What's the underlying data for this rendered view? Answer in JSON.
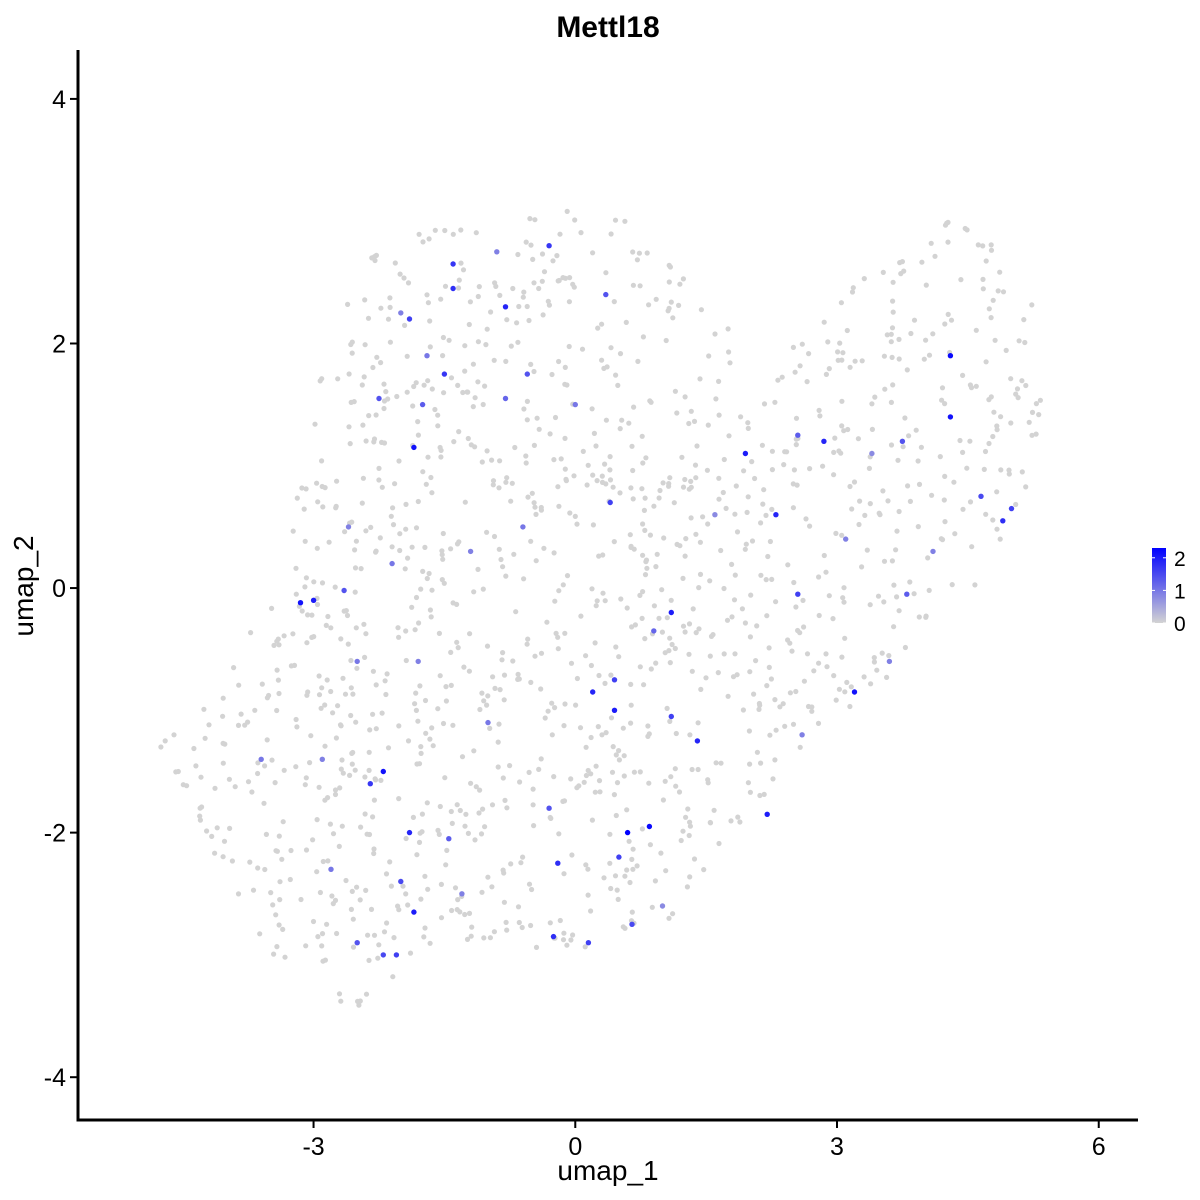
{
  "chart_data": {
    "type": "scatter",
    "title": "Mettl18",
    "xlabel": "umap_1",
    "ylabel": "umap_2",
    "xlim": [
      -5.7,
      6.45
    ],
    "ylim": [
      -4.35,
      4.4
    ],
    "x_ticks": [
      {
        "value": -3,
        "label": "-3"
      },
      {
        "value": 0,
        "label": "0"
      },
      {
        "value": 3,
        "label": "3"
      },
      {
        "value": 6,
        "label": "6"
      }
    ],
    "y_ticks": [
      {
        "value": -4,
        "label": "-4"
      },
      {
        "value": -2,
        "label": "-2"
      },
      {
        "value": 0,
        "label": "0"
      },
      {
        "value": 2,
        "label": "2"
      },
      {
        "value": 4,
        "label": "4"
      }
    ],
    "grid": false,
    "legend": {
      "placement": "right",
      "type": "colorbar",
      "range": [
        0,
        2.3
      ],
      "ticks": [
        {
          "value": 0,
          "label": "0"
        },
        {
          "value": 1,
          "label": "1"
        },
        {
          "value": 2,
          "label": "2"
        }
      ]
    },
    "colors": {
      "low": "#d3d3d3",
      "high": "#0000ff"
    },
    "point_color_variable": "expression",
    "points": [
      {
        "x": -3.0,
        "y": -0.1,
        "v": 2.0
      },
      {
        "x": -3.15,
        "y": -0.12,
        "v": 2.1
      },
      {
        "x": -2.65,
        "y": -0.02,
        "v": 1.4
      },
      {
        "x": -1.85,
        "y": 1.15,
        "v": 2.1
      },
      {
        "x": -1.75,
        "y": 1.5,
        "v": 1.3
      },
      {
        "x": -1.9,
        "y": 2.2,
        "v": 1.6
      },
      {
        "x": -1.4,
        "y": 2.45,
        "v": 1.8
      },
      {
        "x": -1.4,
        "y": 2.65,
        "v": 1.7
      },
      {
        "x": -0.8,
        "y": 2.3,
        "v": 1.9
      },
      {
        "x": -1.5,
        "y": 1.75,
        "v": 1.7
      },
      {
        "x": -0.55,
        "y": 1.75,
        "v": 1.4
      },
      {
        "x": -0.8,
        "y": 1.55,
        "v": 1.2
      },
      {
        "x": -0.3,
        "y": 2.8,
        "v": 1.7
      },
      {
        "x": 0.35,
        "y": 2.4,
        "v": 1.4
      },
      {
        "x": -2.25,
        "y": 1.55,
        "v": 1.4
      },
      {
        "x": -2.2,
        "y": -1.5,
        "v": 2.1
      },
      {
        "x": -2.35,
        "y": -1.6,
        "v": 1.7
      },
      {
        "x": -1.9,
        "y": -2.0,
        "v": 1.9
      },
      {
        "x": -1.85,
        "y": -2.65,
        "v": 2.0
      },
      {
        "x": -2.0,
        "y": -2.4,
        "v": 1.5
      },
      {
        "x": -2.5,
        "y": -2.9,
        "v": 1.4
      },
      {
        "x": -2.2,
        "y": -3.0,
        "v": 1.5
      },
      {
        "x": -2.05,
        "y": -3.0,
        "v": 1.6
      },
      {
        "x": -1.45,
        "y": -2.05,
        "v": 1.3
      },
      {
        "x": -0.3,
        "y": -1.8,
        "v": 1.4
      },
      {
        "x": -0.2,
        "y": -2.25,
        "v": 1.8
      },
      {
        "x": -0.25,
        "y": -2.85,
        "v": 1.8
      },
      {
        "x": 0.15,
        "y": -2.9,
        "v": 1.6
      },
      {
        "x": 0.6,
        "y": -2.0,
        "v": 2.3
      },
      {
        "x": 0.85,
        "y": -1.95,
        "v": 2.2
      },
      {
        "x": 0.5,
        "y": -2.2,
        "v": 1.6
      },
      {
        "x": 0.45,
        "y": -1.0,
        "v": 2.0
      },
      {
        "x": 0.2,
        "y": -0.85,
        "v": 1.9
      },
      {
        "x": 0.45,
        "y": -0.75,
        "v": 1.6
      },
      {
        "x": 1.1,
        "y": -0.2,
        "v": 2.0
      },
      {
        "x": 1.1,
        "y": -1.05,
        "v": 1.6
      },
      {
        "x": 1.4,
        "y": -1.25,
        "v": 1.9
      },
      {
        "x": 0.65,
        "y": -2.75,
        "v": 1.5
      },
      {
        "x": 0.9,
        "y": -0.35,
        "v": 1.2
      },
      {
        "x": 0.4,
        "y": 0.7,
        "v": 1.6
      },
      {
        "x": 1.95,
        "y": 1.1,
        "v": 2.0
      },
      {
        "x": 2.3,
        "y": 0.6,
        "v": 1.9
      },
      {
        "x": 2.85,
        "y": 1.2,
        "v": 1.9
      },
      {
        "x": 2.55,
        "y": 1.25,
        "v": 1.3
      },
      {
        "x": 2.55,
        "y": -0.05,
        "v": 1.6
      },
      {
        "x": 3.2,
        "y": -0.85,
        "v": 2.1
      },
      {
        "x": 2.2,
        "y": -1.85,
        "v": 2.0
      },
      {
        "x": 4.3,
        "y": 1.9,
        "v": 2.2
      },
      {
        "x": 4.3,
        "y": 1.4,
        "v": 2.1
      },
      {
        "x": 4.9,
        "y": 0.55,
        "v": 1.8
      },
      {
        "x": 5.0,
        "y": 0.65,
        "v": 1.6
      },
      {
        "x": 4.65,
        "y": 0.75,
        "v": 1.5
      },
      {
        "x": 3.8,
        "y": -0.05,
        "v": 1.3
      },
      {
        "x": 3.75,
        "y": 1.2,
        "v": 1.4
      },
      {
        "x": -2.0,
        "y": 2.25,
        "v": 0.9
      },
      {
        "x": -1.7,
        "y": 1.9,
        "v": 1.0
      },
      {
        "x": -0.6,
        "y": 0.5,
        "v": 1.0
      },
      {
        "x": -1.2,
        "y": 0.3,
        "v": 0.9
      },
      {
        "x": -2.6,
        "y": 0.5,
        "v": 0.9
      },
      {
        "x": -2.5,
        "y": -0.6,
        "v": 1.0
      },
      {
        "x": -1.8,
        "y": -0.6,
        "v": 0.9
      },
      {
        "x": -2.9,
        "y": -1.4,
        "v": 0.9
      },
      {
        "x": -1.0,
        "y": -1.1,
        "v": 1.0
      },
      {
        "x": 1.6,
        "y": 0.6,
        "v": 0.8
      },
      {
        "x": 3.1,
        "y": 0.4,
        "v": 0.9
      },
      {
        "x": 3.4,
        "y": 1.1,
        "v": 0.8
      },
      {
        "x": 3.6,
        "y": -0.6,
        "v": 0.9
      },
      {
        "x": 4.1,
        "y": 0.3,
        "v": 0.9
      },
      {
        "x": 2.6,
        "y": -1.2,
        "v": 0.9
      },
      {
        "x": 0.0,
        "y": 1.5,
        "v": 1.0
      },
      {
        "x": -0.9,
        "y": 2.75,
        "v": 0.9
      },
      {
        "x": -2.1,
        "y": 0.2,
        "v": 1.0
      },
      {
        "x": -3.6,
        "y": -1.4,
        "v": 1.0
      },
      {
        "x": -2.8,
        "y": -2.3,
        "v": 1.0
      },
      {
        "x": -1.3,
        "y": -2.5,
        "v": 0.9
      },
      {
        "x": 1.0,
        "y": -2.6,
        "v": 0.8
      }
    ],
    "background_points": {
      "v": 0,
      "approx_count": 1380,
      "region": [
        [
          -4.7,
          -1.3
        ],
        [
          -4.4,
          -1.9
        ],
        [
          -3.7,
          -2.9
        ],
        [
          -2.5,
          -3.5
        ],
        [
          -1.5,
          -3.0
        ],
        [
          0.0,
          -3.0
        ],
        [
          1.0,
          -2.8
        ],
        [
          2.0,
          -1.8
        ],
        [
          3.5,
          -0.8
        ],
        [
          4.9,
          0.2
        ],
        [
          5.35,
          1.2
        ],
        [
          5.35,
          2.2
        ],
        [
          4.8,
          2.8
        ],
        [
          4.4,
          3.05
        ],
        [
          3.4,
          2.6
        ],
        [
          2.1,
          1.8
        ],
        [
          1.1,
          2.8
        ],
        [
          0.3,
          3.1
        ],
        [
          -1.0,
          3.05
        ],
        [
          -2.2,
          2.9
        ],
        [
          -2.9,
          2.0
        ],
        [
          -3.1,
          1.0
        ],
        [
          -3.6,
          -0.2
        ],
        [
          -4.4,
          -1.1
        ]
      ]
    }
  }
}
